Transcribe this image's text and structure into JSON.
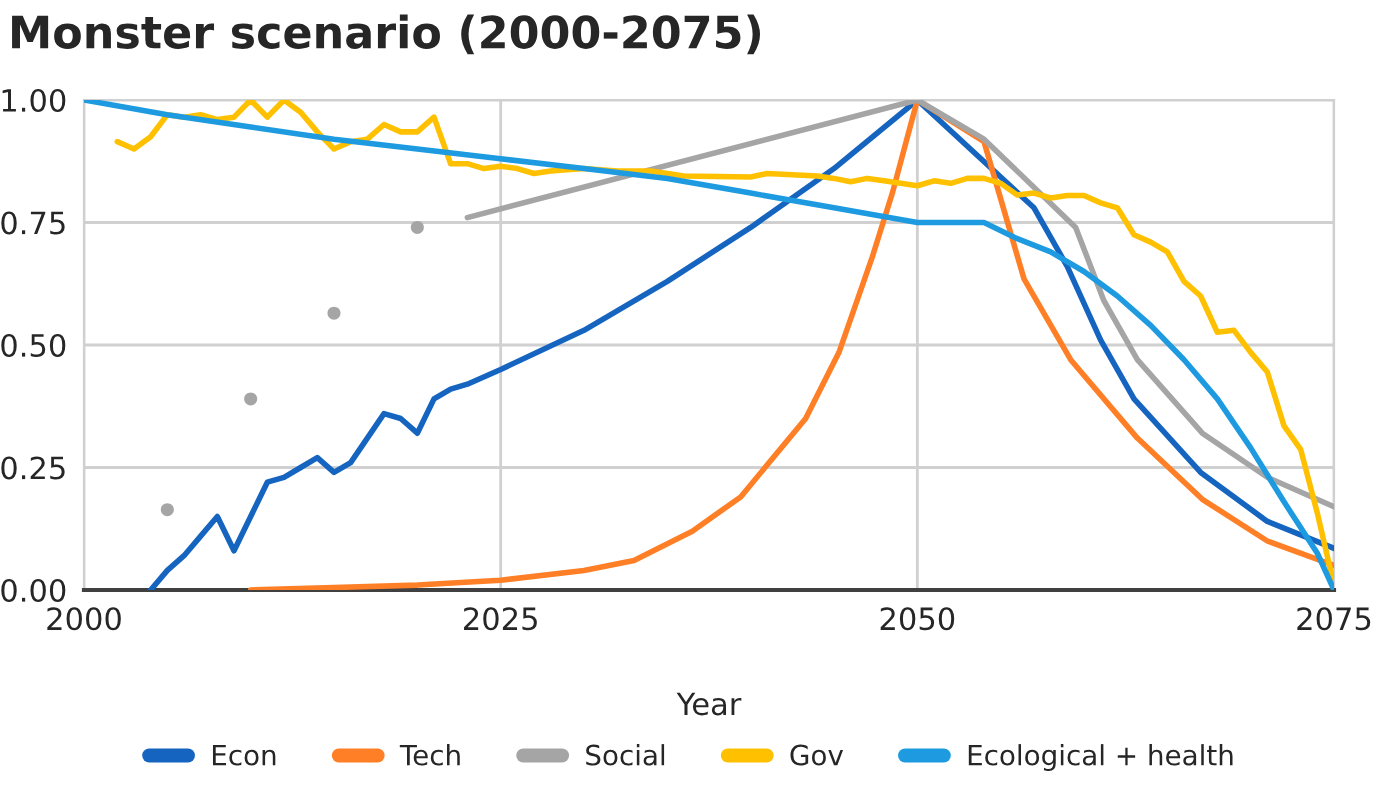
{
  "chart_data": {
    "type": "line",
    "title": "Monster scenario (2000-2075)",
    "xlabel": "Year",
    "xlim": [
      2000,
      2075
    ],
    "xticks": [
      2000,
      2025,
      2050,
      2075
    ],
    "ylim": [
      0,
      1
    ],
    "yticks": [
      {
        "value": 0,
        "label": "0.00"
      },
      {
        "value": 0.25,
        "label": "0.25"
      },
      {
        "value": 0.5,
        "label": "0.50"
      },
      {
        "value": 0.75,
        "label": "0.75"
      },
      {
        "value": 1,
        "label": "1.00"
      }
    ],
    "grid": true,
    "legend": "bottom",
    "marker": "none",
    "line_style": "solid",
    "series": [
      {
        "name": "Econ",
        "color": "#1565c0",
        "x": [
          2004,
          2005,
          2006,
          2007,
          2008,
          2009,
          2010,
          2011,
          2012,
          2013,
          2014,
          2015,
          2016,
          2017,
          2018,
          2019,
          2020,
          2021,
          2022,
          2023,
          2025,
          2030,
          2035,
          2040,
          2045,
          2050,
          2057,
          2059,
          2061,
          2063,
          2067,
          2071,
          2075
        ],
        "values": [
          0,
          0.04,
          0.07,
          0.11,
          0.15,
          0.08,
          0.15,
          0.22,
          0.23,
          0.25,
          0.27,
          0.24,
          0.26,
          0.31,
          0.36,
          0.35,
          0.32,
          0.39,
          0.41,
          0.42,
          0.45,
          0.53,
          0.63,
          0.74,
          0.86,
          1.0,
          0.78,
          0.66,
          0.51,
          0.39,
          0.24,
          0.14,
          0.085
        ]
      },
      {
        "name": "Tech",
        "color": "#ff7f27",
        "x": [
          2010,
          2015,
          2020,
          2025,
          2030,
          2033,
          2036.5,
          2039.4,
          2043.3,
          2045.3,
          2047.3,
          2048.5,
          2050,
          2054,
          2056.4,
          2059.2,
          2063.2,
          2067.1,
          2071,
          2075
        ],
        "values": [
          0,
          0.005,
          0.01,
          0.02,
          0.04,
          0.06,
          0.12,
          0.19,
          0.35,
          0.485,
          0.68,
          0.81,
          1.0,
          0.915,
          0.635,
          0.47,
          0.31,
          0.185,
          0.1,
          0.05
        ]
      },
      {
        "name": "Social",
        "color": "#a5a5a5",
        "x": [
          2023,
          2050,
          2054,
          2059.5,
          2061.2,
          2063.2,
          2067.1,
          2071,
          2075
        ],
        "values": [
          0.76,
          1.0,
          0.92,
          0.74,
          0.59,
          0.47,
          0.32,
          0.23,
          0.17
        ]
      },
      {
        "type": "scatter",
        "color": "#a5a5a5",
        "marker": "circle",
        "x": [
          2005,
          2010,
          2015,
          2020
        ],
        "values": [
          0.164,
          0.39,
          0.565,
          0.74
        ]
      },
      {
        "name": "Gov",
        "color": "#ffc000",
        "x": [
          2002,
          2003,
          2004,
          2005,
          2006,
          2007,
          2008,
          2009,
          2010,
          2011,
          2012,
          2013,
          2014,
          2015,
          2016,
          2017,
          2018,
          2019,
          2020,
          2021,
          2022,
          2023,
          2024,
          2025,
          2026,
          2027,
          2028,
          2030,
          2032,
          2034,
          2036,
          2040,
          2041,
          2044,
          2045,
          2046,
          2047,
          2048,
          2049,
          2050,
          2051,
          2052,
          2053,
          2054,
          2055,
          2056,
          2057,
          2058,
          2059,
          2060,
          2061,
          2062,
          2063,
          2064,
          2065,
          2066,
          2067,
          2068,
          2069,
          2070,
          2071,
          2072,
          2073,
          2074,
          2075
        ],
        "values": [
          0.915,
          0.9,
          0.925,
          0.97,
          0.965,
          0.97,
          0.96,
          0.965,
          1.0,
          0.965,
          1.0,
          0.975,
          0.935,
          0.9,
          0.915,
          0.92,
          0.95,
          0.935,
          0.935,
          0.965,
          0.87,
          0.87,
          0.86,
          0.865,
          0.86,
          0.85,
          0.855,
          0.86,
          0.855,
          0.855,
          0.845,
          0.843,
          0.85,
          0.845,
          0.84,
          0.833,
          0.84,
          0.835,
          0.83,
          0.825,
          0.835,
          0.83,
          0.84,
          0.84,
          0.83,
          0.806,
          0.81,
          0.8,
          0.805,
          0.805,
          0.79,
          0.78,
          0.725,
          0.71,
          0.69,
          0.63,
          0.6,
          0.526,
          0.53,
          0.485,
          0.445,
          0.335,
          0.287,
          0.157,
          0.01
        ]
      },
      {
        "name": "Ecological + health",
        "color": "#1e9be0",
        "x": [
          2000,
          2005,
          2010,
          2015,
          2020,
          2025,
          2030,
          2035,
          2040,
          2045,
          2050,
          2054,
          2056,
          2058,
          2060,
          2062,
          2064,
          2066,
          2068,
          2070,
          2072,
          2074,
          2075
        ],
        "values": [
          1.0,
          0.97,
          0.945,
          0.92,
          0.9,
          0.88,
          0.86,
          0.84,
          0.81,
          0.78,
          0.75,
          0.75,
          0.717,
          0.69,
          0.65,
          0.6,
          0.54,
          0.47,
          0.39,
          0.29,
          0.18,
          0.075,
          0.0
        ]
      }
    ]
  }
}
